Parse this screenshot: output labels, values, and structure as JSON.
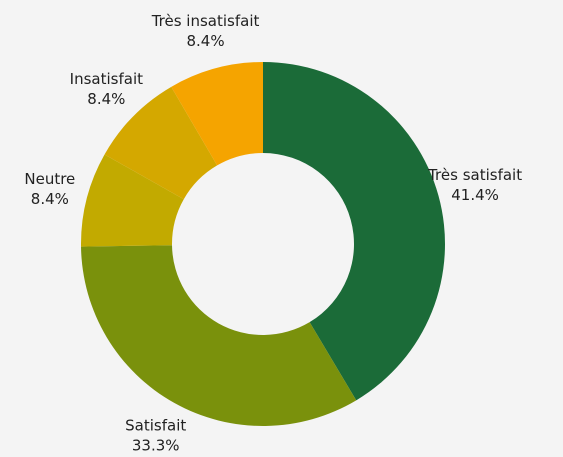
{
  "chart_data": {
    "type": "donut",
    "categories": [
      "Très satisfait",
      "Satisfait",
      "Neutre",
      "Insatisfait",
      "Très insatisfait"
    ],
    "values": [
      41.4,
      33.3,
      8.4,
      8.4,
      8.4
    ],
    "value_labels": [
      "41.4%",
      "33.3%",
      "8.4%",
      "8.4%",
      "8.4%"
    ],
    "colors": [
      "#1b6b38",
      "#7a910c",
      "#c2aa00",
      "#d4a800",
      "#f5a400"
    ]
  }
}
